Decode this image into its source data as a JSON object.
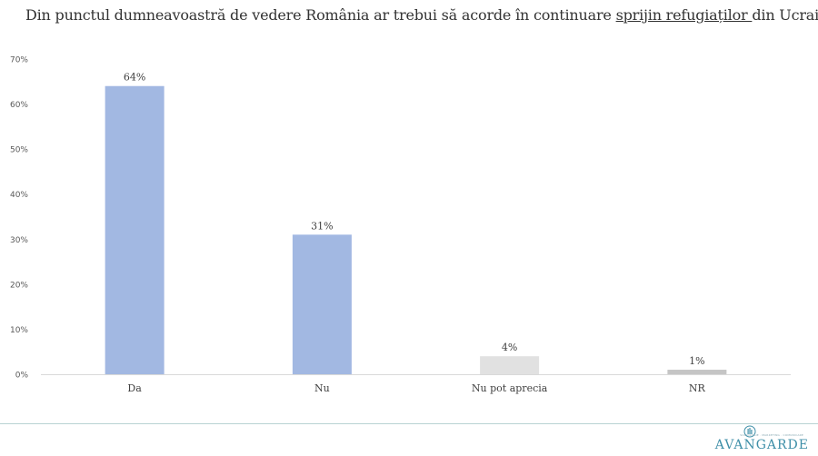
{
  "title": {
    "before": "Din punctul dumneavoastră de vedere România ar trebui să acorde în continuare ",
    "highlight": "sprijin refugiaților ",
    "after": "din Ucraina?"
  },
  "chart_data": {
    "type": "bar",
    "categories": [
      "Da",
      "Nu",
      "Nu pot aprecia",
      "NR"
    ],
    "values": [
      64,
      31,
      4,
      1
    ],
    "data_labels": [
      "64%",
      "31%",
      "4%",
      "1%"
    ],
    "bar_colors": [
      "#a2b8e2",
      "#a2b8e2",
      "#e1e1e1",
      "#c5c5c5"
    ],
    "ylim": [
      0,
      70
    ],
    "y_ticks": [
      0,
      10,
      20,
      30,
      40,
      50,
      60,
      70
    ],
    "y_tick_labels": [
      "0%",
      "10%",
      "20%",
      "30%",
      "40%",
      "50%",
      "60%",
      "70%"
    ],
    "xlabel": "",
    "ylabel": "",
    "grid": false,
    "legend": "none"
  },
  "brand": {
    "name": "AVANGARDE",
    "tagline": "SOCIOLOGIE · MARKETING · COMUNICARE",
    "logo_icon": "avangarde-logo-icon",
    "color": "#3f8fa8"
  }
}
